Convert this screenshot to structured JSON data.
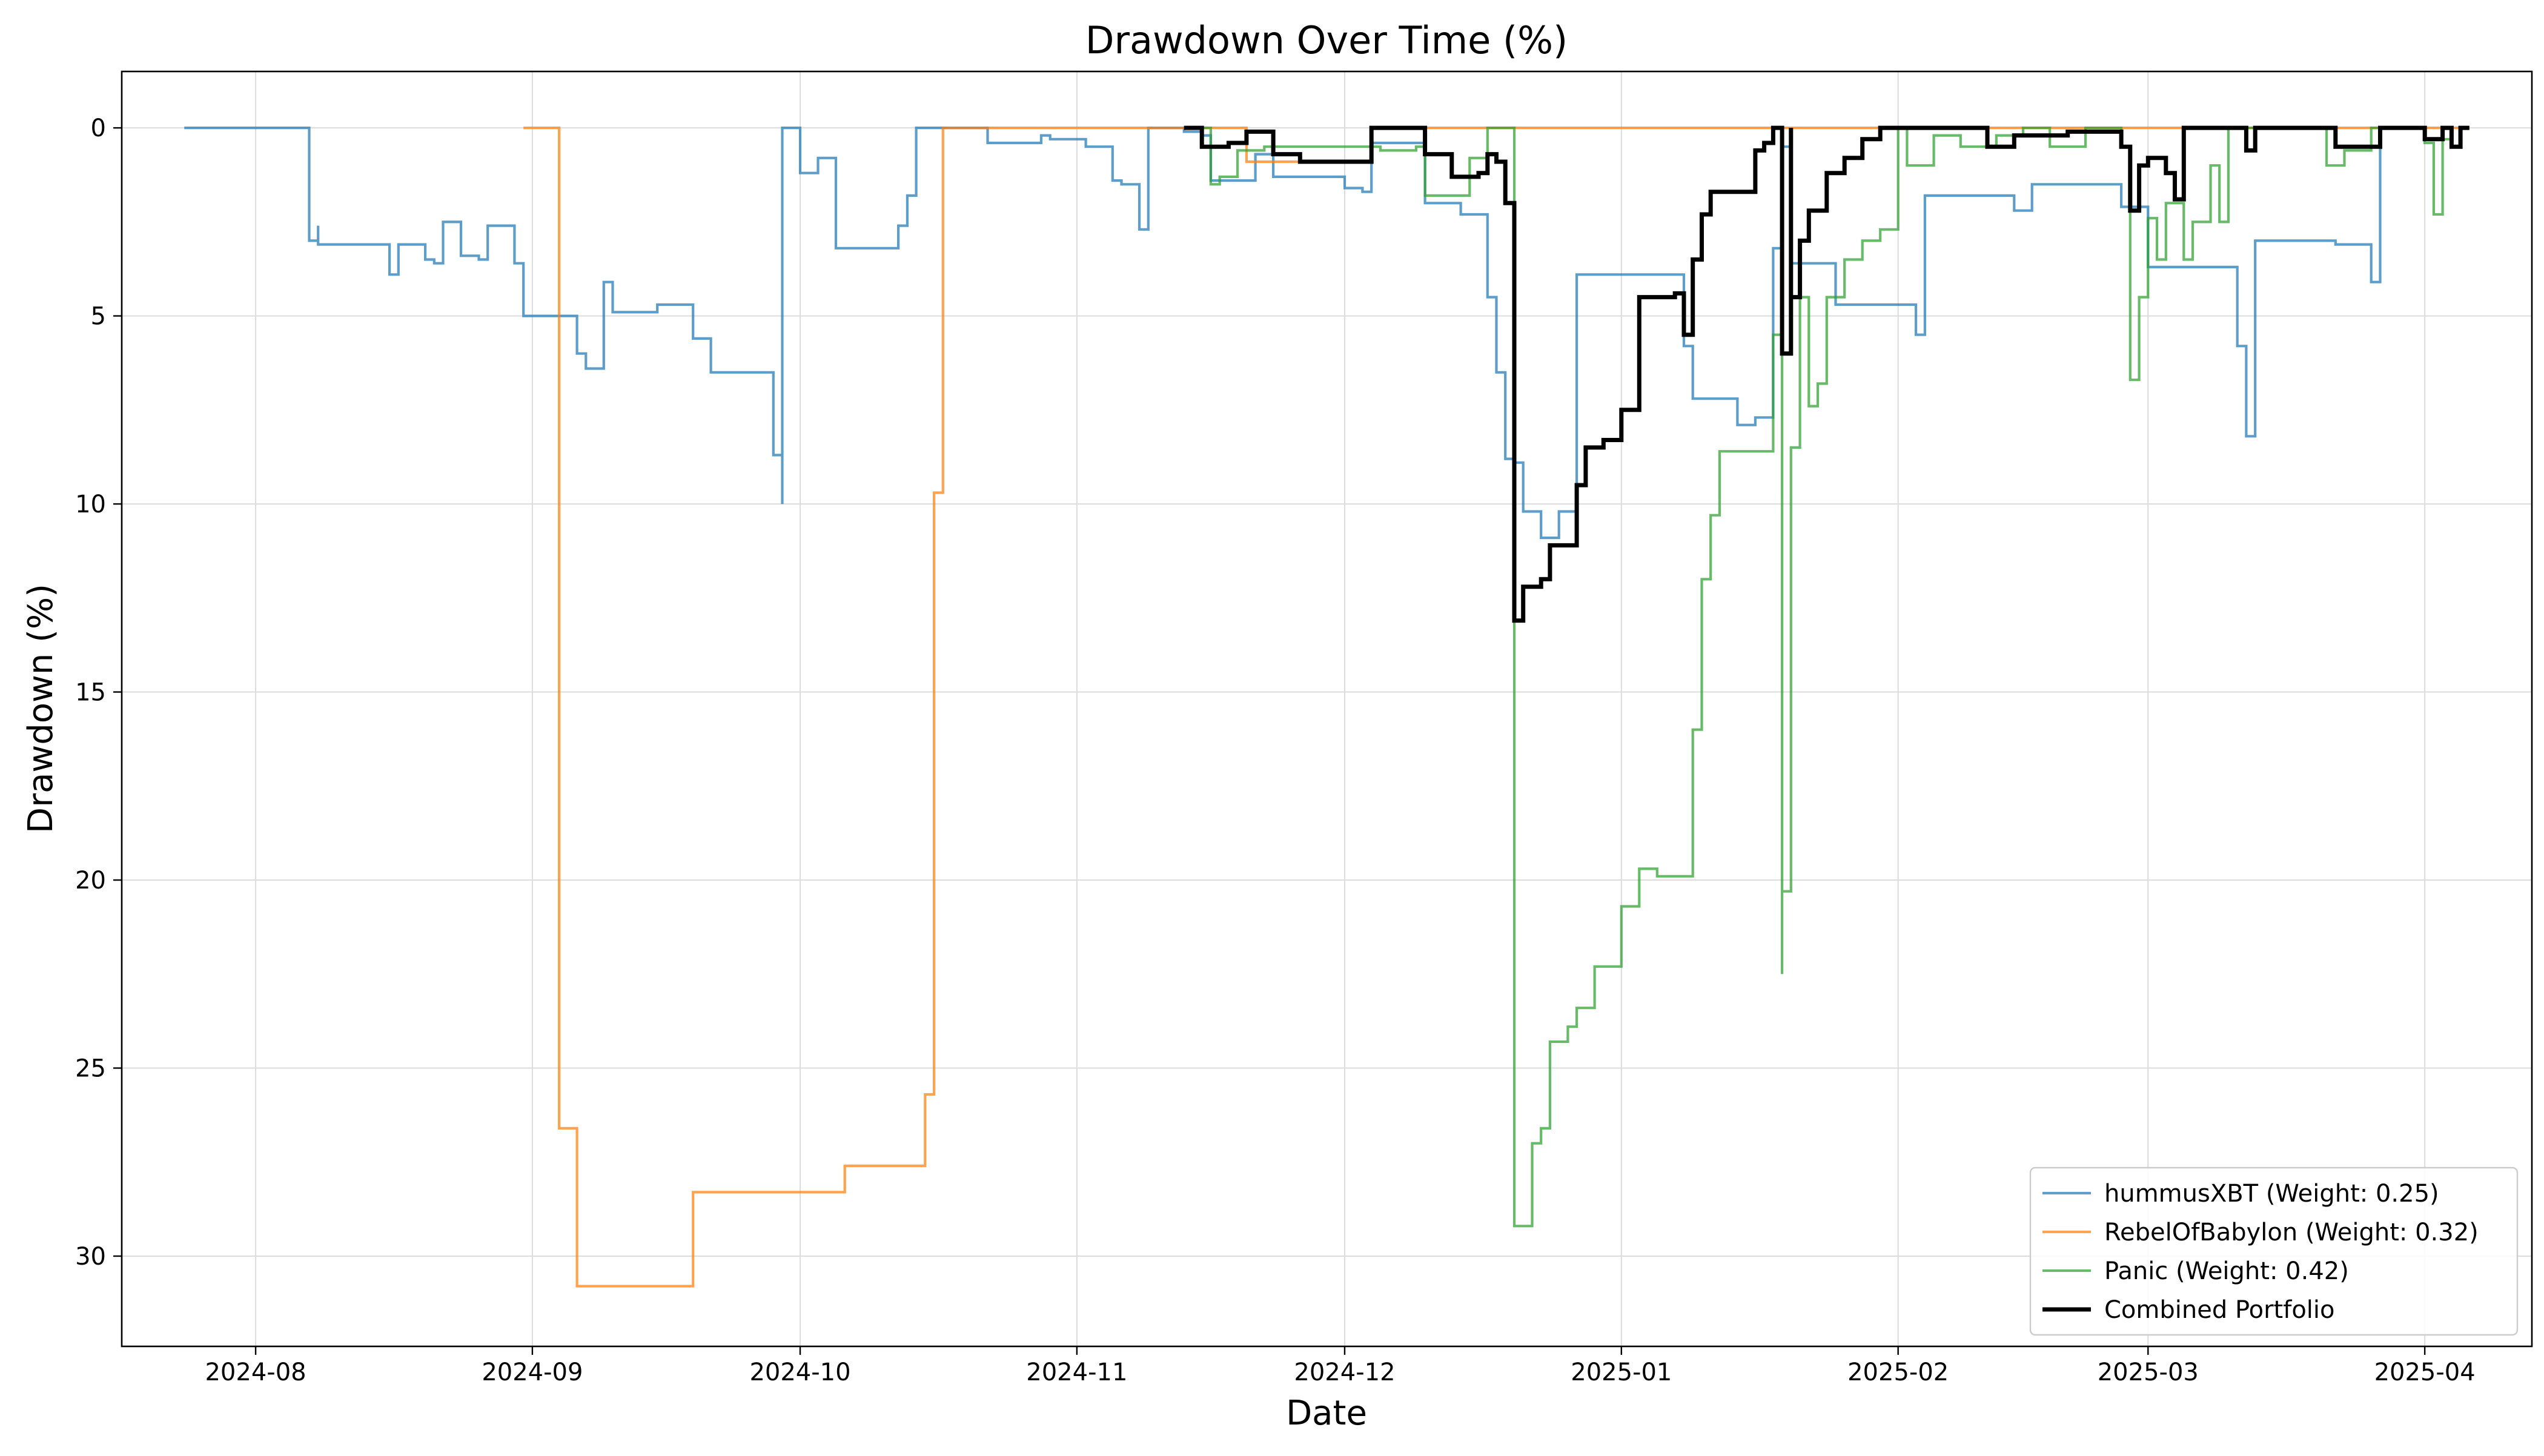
{
  "chart_data": {
    "type": "line",
    "title": "Drawdown Over Time (%)",
    "xlabel": "Date",
    "ylabel": "Drawdown (%)",
    "x_tick_labels": [
      "2024-08",
      "2024-09",
      "2024-10",
      "2024-11",
      "2024-12",
      "2025-01",
      "2025-02",
      "2025-03",
      "2025-04"
    ],
    "y_tick_labels": [
      "0",
      "5",
      "10",
      "15",
      "20",
      "25",
      "30"
    ],
    "y_ticks": [
      0,
      5,
      10,
      15,
      20,
      25,
      30
    ],
    "xlim": [
      "2024-07-17",
      "2025-04-13"
    ],
    "ylim": [
      32.4,
      -1.5
    ],
    "y_inverted": true,
    "grid": true,
    "legend_position": "lower-right",
    "series": [
      {
        "name": "hummusXBT (Weight: 0.25)",
        "color": "#1f77b4",
        "points": [
          [
            "2024-07-24",
            0
          ],
          [
            "2024-08-07",
            0
          ],
          [
            "2024-08-07",
            3.0
          ],
          [
            "2024-08-08",
            2.6
          ],
          [
            "2024-08-08",
            3.1
          ],
          [
            "2024-08-15",
            3.1
          ],
          [
            "2024-08-16",
            3.9
          ],
          [
            "2024-08-17",
            3.1
          ],
          [
            "2024-08-19",
            3.1
          ],
          [
            "2024-08-20",
            3.5
          ],
          [
            "2024-08-21",
            3.6
          ],
          [
            "2024-08-22",
            2.5
          ],
          [
            "2024-08-24",
            2.5
          ],
          [
            "2024-08-24",
            3.4
          ],
          [
            "2024-08-26",
            3.5
          ],
          [
            "2024-08-27",
            2.6
          ],
          [
            "2024-08-30",
            2.6
          ],
          [
            "2024-08-30",
            3.6
          ],
          [
            "2024-08-31",
            5.0
          ],
          [
            "2024-09-02",
            5.0
          ],
          [
            "2024-09-05",
            5.0
          ],
          [
            "2024-09-06",
            6.0
          ],
          [
            "2024-09-07",
            6.4
          ],
          [
            "2024-09-09",
            6.4
          ],
          [
            "2024-09-09",
            4.1
          ],
          [
            "2024-09-10",
            4.1
          ],
          [
            "2024-09-10",
            4.9
          ],
          [
            "2024-09-14",
            4.9
          ],
          [
            "2024-09-15",
            4.7
          ],
          [
            "2024-09-18",
            4.7
          ],
          [
            "2024-09-19",
            5.6
          ],
          [
            "2024-09-21",
            6.5
          ],
          [
            "2024-09-25",
            6.5
          ],
          [
            "2024-09-28",
            6.5
          ],
          [
            "2024-09-28",
            8.7
          ],
          [
            "2024-09-29",
            10.0
          ],
          [
            "2024-09-29",
            0
          ],
          [
            "2024-10-01",
            0
          ],
          [
            "2024-10-01",
            1.2
          ],
          [
            "2024-10-03",
            1.2
          ],
          [
            "2024-10-03",
            0.8
          ],
          [
            "2024-10-05",
            3.2
          ],
          [
            "2024-10-11",
            3.2
          ],
          [
            "2024-10-12",
            2.6
          ],
          [
            "2024-10-13",
            1.8
          ],
          [
            "2024-10-14",
            0
          ],
          [
            "2024-10-21",
            0
          ],
          [
            "2024-10-22",
            0.4
          ],
          [
            "2024-10-26",
            0.4
          ],
          [
            "2024-10-28",
            0.2
          ],
          [
            "2024-10-29",
            0.3
          ],
          [
            "2024-11-01",
            0.3
          ],
          [
            "2024-11-02",
            0.5
          ],
          [
            "2024-11-04",
            0.5
          ],
          [
            "2024-11-05",
            1.4
          ],
          [
            "2024-11-06",
            1.5
          ],
          [
            "2024-11-08",
            2.7
          ],
          [
            "2024-11-09",
            0
          ],
          [
            "2024-11-13",
            0.1
          ],
          [
            "2024-11-15",
            0.2
          ],
          [
            "2024-11-16",
            1.4
          ],
          [
            "2024-11-21",
            1.4
          ],
          [
            "2024-11-21",
            0.7
          ],
          [
            "2024-11-23",
            1.3
          ],
          [
            "2024-11-28",
            1.3
          ],
          [
            "2024-12-01",
            1.3
          ],
          [
            "2024-12-01",
            1.6
          ],
          [
            "2024-12-03",
            1.7
          ],
          [
            "2024-12-04",
            0.4
          ],
          [
            "2024-12-09",
            0.4
          ],
          [
            "2024-12-10",
            2.0
          ],
          [
            "2024-12-14",
            2.3
          ],
          [
            "2024-12-17",
            2.3
          ],
          [
            "2024-12-17",
            4.5
          ],
          [
            "2024-12-18",
            6.5
          ],
          [
            "2024-12-19",
            8.8
          ],
          [
            "2024-12-20",
            8.9
          ],
          [
            "2024-12-21",
            10.2
          ],
          [
            "2024-12-23",
            10.9
          ],
          [
            "2024-12-25",
            10.2
          ],
          [
            "2024-12-27",
            10.2
          ],
          [
            "2024-12-27",
            3.9
          ],
          [
            "2025-01-07",
            3.9
          ],
          [
            "2025-01-08",
            5.8
          ],
          [
            "2025-01-09",
            7.2
          ],
          [
            "2025-01-13",
            7.2
          ],
          [
            "2025-01-14",
            7.9
          ],
          [
            "2025-01-16",
            7.7
          ],
          [
            "2025-01-18",
            7.6
          ],
          [
            "2025-01-18",
            3.2
          ],
          [
            "2025-01-19",
            0.5
          ],
          [
            "2025-01-20",
            3.6
          ],
          [
            "2025-01-23",
            3.6
          ],
          [
            "2025-01-25",
            4.7
          ],
          [
            "2025-02-02",
            4.7
          ],
          [
            "2025-02-03",
            5.5
          ],
          [
            "2025-02-04",
            1.8
          ],
          [
            "2025-02-13",
            1.8
          ],
          [
            "2025-02-14",
            2.2
          ],
          [
            "2025-02-16",
            1.5
          ],
          [
            "2025-02-25",
            1.5
          ],
          [
            "2025-02-26",
            2.1
          ],
          [
            "2025-03-01",
            3.7
          ],
          [
            "2025-03-10",
            3.7
          ],
          [
            "2025-03-11",
            5.8
          ],
          [
            "2025-03-12",
            8.2
          ],
          [
            "2025-03-13",
            3.0
          ],
          [
            "2025-03-22",
            3.1
          ],
          [
            "2025-03-26",
            3.1
          ],
          [
            "2025-03-26",
            4.1
          ],
          [
            "2025-03-27",
            0
          ]
        ]
      },
      {
        "name": "RebelOfBabylon (Weight: 0.32)",
        "color": "#ff7f0e",
        "points": [
          [
            "2024-08-31",
            0
          ],
          [
            "2024-09-04",
            0
          ],
          [
            "2024-09-04",
            26.6
          ],
          [
            "2024-09-06",
            26.6
          ],
          [
            "2024-09-06",
            30.8
          ],
          [
            "2024-09-19",
            30.8
          ],
          [
            "2024-09-19",
            28.3
          ],
          [
            "2024-10-06",
            28.3
          ],
          [
            "2024-10-06",
            27.6
          ],
          [
            "2024-10-15",
            27.6
          ],
          [
            "2024-10-15",
            25.7
          ],
          [
            "2024-10-16",
            22.9
          ],
          [
            "2024-10-16",
            9.7
          ],
          [
            "2024-10-17",
            0
          ],
          [
            "2024-11-20",
            0
          ],
          [
            "2024-11-20",
            0.9
          ],
          [
            "2024-12-04",
            0.9
          ],
          [
            "2024-12-04",
            0
          ],
          [
            "2025-04-06",
            0
          ]
        ]
      },
      {
        "name": "Panic (Weight: 0.42)",
        "color": "#2ca02c",
        "points": [
          [
            "2024-11-14",
            0
          ],
          [
            "2024-11-16",
            1.5
          ],
          [
            "2024-11-17",
            1.3
          ],
          [
            "2024-11-19",
            0.6
          ],
          [
            "2024-11-22",
            0.5
          ],
          [
            "2024-11-26",
            0.5
          ],
          [
            "2024-12-02",
            0.5
          ],
          [
            "2024-12-05",
            0.6
          ],
          [
            "2024-12-09",
            0.5
          ],
          [
            "2024-12-10",
            1.8
          ],
          [
            "2024-12-14",
            1.8
          ],
          [
            "2024-12-15",
            0.8
          ],
          [
            "2024-12-17",
            0
          ],
          [
            "2024-12-20",
            0
          ],
          [
            "2024-12-20",
            29.2
          ],
          [
            "2024-12-22",
            29.2
          ],
          [
            "2024-12-22",
            27.0
          ],
          [
            "2024-12-23",
            26.6
          ],
          [
            "2024-12-24",
            24.3
          ],
          [
            "2024-12-26",
            23.9
          ],
          [
            "2024-12-27",
            23.4
          ],
          [
            "2024-12-29",
            22.3
          ],
          [
            "2025-01-01",
            20.7
          ],
          [
            "2025-01-03",
            19.7
          ],
          [
            "2025-01-05",
            19.9
          ],
          [
            "2025-01-08",
            19.9
          ],
          [
            "2025-01-09",
            16.0
          ],
          [
            "2025-01-10",
            12.0
          ],
          [
            "2025-01-11",
            10.3
          ],
          [
            "2025-01-12",
            8.6
          ],
          [
            "2025-01-18",
            8.6
          ],
          [
            "2025-01-18",
            5.5
          ],
          [
            "2025-01-19",
            22.5
          ],
          [
            "2025-01-19",
            20.3
          ],
          [
            "2025-01-20",
            8.5
          ],
          [
            "2025-01-21",
            4.5
          ],
          [
            "2025-01-22",
            7.4
          ],
          [
            "2025-01-23",
            6.8
          ],
          [
            "2025-01-24",
            4.5
          ],
          [
            "2025-01-26",
            3.5
          ],
          [
            "2025-01-28",
            3.0
          ],
          [
            "2025-01-30",
            2.7
          ],
          [
            "2025-02-01",
            0
          ],
          [
            "2025-02-02",
            1.0
          ],
          [
            "2025-02-05",
            0.2
          ],
          [
            "2025-02-08",
            0.5
          ],
          [
            "2025-02-12",
            0.2
          ],
          [
            "2025-02-15",
            0
          ],
          [
            "2025-02-18",
            0.5
          ],
          [
            "2025-02-22",
            0
          ],
          [
            "2025-02-26",
            0.5
          ],
          [
            "2025-02-27",
            6.7
          ],
          [
            "2025-02-28",
            4.5
          ],
          [
            "2025-03-01",
            2.4
          ],
          [
            "2025-03-02",
            3.5
          ],
          [
            "2025-03-03",
            2.0
          ],
          [
            "2025-03-05",
            3.5
          ],
          [
            "2025-03-06",
            2.5
          ],
          [
            "2025-03-08",
            1.0
          ],
          [
            "2025-03-09",
            2.5
          ],
          [
            "2025-03-10",
            0
          ],
          [
            "2025-03-20",
            0
          ],
          [
            "2025-03-21",
            1.0
          ],
          [
            "2025-03-23",
            0.6
          ],
          [
            "2025-03-26",
            0
          ],
          [
            "2025-03-31",
            0
          ],
          [
            "2025-04-01",
            0.4
          ],
          [
            "2025-04-02",
            2.3
          ],
          [
            "2025-04-03",
            0.3
          ],
          [
            "2025-04-04",
            0
          ]
        ]
      },
      {
        "name": "Combined Portfolio",
        "color": "#000000",
        "points": [
          [
            "2024-11-13",
            0
          ],
          [
            "2024-11-15",
            0.5
          ],
          [
            "2024-11-18",
            0.4
          ],
          [
            "2024-11-20",
            0.1
          ],
          [
            "2024-11-23",
            0.7
          ],
          [
            "2024-11-26",
            0.9
          ],
          [
            "2024-12-03",
            0.9
          ],
          [
            "2024-12-04",
            0
          ],
          [
            "2024-12-09",
            0
          ],
          [
            "2024-12-10",
            0.7
          ],
          [
            "2024-12-13",
            1.3
          ],
          [
            "2024-12-16",
            1.2
          ],
          [
            "2024-12-17",
            0.7
          ],
          [
            "2024-12-18",
            0.9
          ],
          [
            "2024-12-19",
            2.0
          ],
          [
            "2024-12-20",
            2.1
          ],
          [
            "2024-12-20",
            13.1
          ],
          [
            "2024-12-21",
            13.1
          ],
          [
            "2024-12-21",
            12.2
          ],
          [
            "2024-12-23",
            12.0
          ],
          [
            "2024-12-24",
            11.1
          ],
          [
            "2024-12-26",
            11.1
          ],
          [
            "2024-12-27",
            9.5
          ],
          [
            "2024-12-28",
            8.5
          ],
          [
            "2024-12-30",
            8.3
          ],
          [
            "2025-01-01",
            7.5
          ],
          [
            "2025-01-03",
            4.5
          ],
          [
            "2025-01-06",
            4.5
          ],
          [
            "2025-01-07",
            4.4
          ],
          [
            "2025-01-08",
            5.5
          ],
          [
            "2025-01-09",
            3.5
          ],
          [
            "2025-01-10",
            2.3
          ],
          [
            "2025-01-11",
            1.7
          ],
          [
            "2025-01-14",
            1.7
          ],
          [
            "2025-01-16",
            0.6
          ],
          [
            "2025-01-17",
            0.4
          ],
          [
            "2025-01-18",
            0
          ],
          [
            "2025-01-19",
            6.0
          ],
          [
            "2025-01-20",
            0
          ],
          [
            "2025-01-20",
            4.5
          ],
          [
            "2025-01-21",
            3.0
          ],
          [
            "2025-01-22",
            2.2
          ],
          [
            "2025-01-24",
            1.2
          ],
          [
            "2025-01-26",
            0.8
          ],
          [
            "2025-01-28",
            0.3
          ],
          [
            "2025-01-30",
            0
          ],
          [
            "2025-02-10",
            0
          ],
          [
            "2025-02-11",
            0.5
          ],
          [
            "2025-02-14",
            0.2
          ],
          [
            "2025-02-20",
            0.1
          ],
          [
            "2025-02-26",
            0.5
          ],
          [
            "2025-02-27",
            2.2
          ],
          [
            "2025-02-28",
            1.0
          ],
          [
            "2025-03-01",
            0.8
          ],
          [
            "2025-03-03",
            1.2
          ],
          [
            "2025-03-04",
            1.9
          ],
          [
            "2025-03-05",
            0
          ],
          [
            "2025-03-11",
            0
          ],
          [
            "2025-03-12",
            0.6
          ],
          [
            "2025-03-13",
            0
          ],
          [
            "2025-03-21",
            0
          ],
          [
            "2025-03-22",
            0.5
          ],
          [
            "2025-03-26",
            0.5
          ],
          [
            "2025-03-27",
            0
          ],
          [
            "2025-03-31",
            0
          ],
          [
            "2025-04-01",
            0.3
          ],
          [
            "2025-04-03",
            0.3
          ],
          [
            "2025-04-03",
            0
          ],
          [
            "2025-04-04",
            0.5
          ],
          [
            "2025-04-05",
            0
          ],
          [
            "2025-04-06",
            0
          ]
        ]
      }
    ]
  }
}
